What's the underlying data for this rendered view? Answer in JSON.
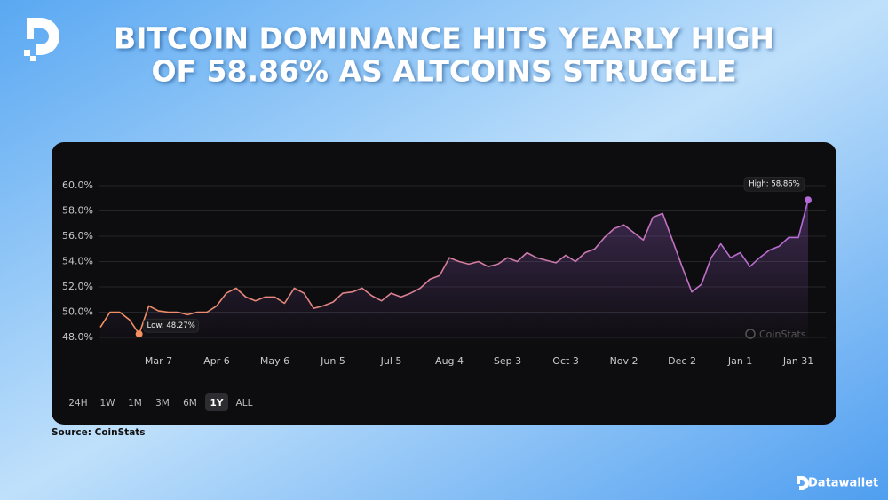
{
  "header": {
    "title_lines": [
      "BITCOIN DOMINANCE HITS YEARLY HIGH",
      "OF 58.86% AS ALTCOINS STRUGGLE"
    ]
  },
  "chart_data": {
    "type": "line",
    "categories": [
      null,
      null,
      null,
      null,
      null,
      null,
      "Mar 7",
      null,
      null,
      null,
      null,
      null,
      "Apr 6",
      null,
      null,
      null,
      null,
      null,
      "May 6",
      null,
      null,
      null,
      null,
      null,
      "Jun 5",
      null,
      null,
      null,
      null,
      null,
      "Jul 5",
      null,
      null,
      null,
      null,
      null,
      "Aug 4",
      null,
      null,
      null,
      null,
      null,
      "Sep 3",
      null,
      null,
      null,
      null,
      null,
      "Oct 3",
      null,
      null,
      null,
      null,
      null,
      "Nov 2",
      null,
      null,
      null,
      null,
      null,
      "Dec 2",
      null,
      null,
      null,
      null,
      null,
      "Jan 1",
      null,
      null,
      null,
      null,
      null,
      "Jan 31",
      null
    ],
    "values": [
      48.8,
      50.0,
      50.0,
      49.4,
      48.27,
      50.5,
      50.1,
      50.0,
      50.0,
      49.8,
      50.0,
      50.0,
      50.5,
      51.5,
      51.9,
      51.2,
      50.9,
      51.2,
      51.2,
      50.7,
      51.9,
      51.5,
      50.3,
      50.5,
      50.8,
      51.5,
      51.6,
      51.9,
      51.3,
      50.9,
      51.5,
      51.2,
      51.5,
      51.9,
      52.6,
      52.9,
      54.3,
      54.0,
      53.8,
      54.0,
      53.6,
      53.8,
      54.3,
      54.0,
      54.7,
      54.3,
      54.1,
      53.9,
      54.5,
      54.0,
      54.7,
      55.0,
      55.9,
      56.6,
      56.9,
      56.3,
      55.7,
      57.5,
      57.8,
      55.7,
      53.6,
      51.6,
      52.2,
      54.3,
      55.4,
      54.3,
      54.7,
      53.6,
      54.3,
      54.9,
      55.2,
      55.9,
      55.9,
      58.86
    ],
    "colors": [
      "#f4915e",
      "#b36ad8"
    ],
    "ylim": [
      48,
      60
    ],
    "yticks": [
      {
        "value": 48,
        "label": "48.0%"
      },
      {
        "value": 50,
        "label": "50.0%"
      },
      {
        "value": 52,
        "label": "52.0%"
      },
      {
        "value": 54,
        "label": "54.0%"
      },
      {
        "value": 56,
        "label": "56.0%"
      },
      {
        "value": 58,
        "label": "58.0%"
      },
      {
        "value": 60,
        "label": "60.0%"
      }
    ],
    "grid": true,
    "annotations": {
      "low": "Low: 48.27%",
      "high": "High: 58.86%"
    },
    "watermark": "CoinStats"
  },
  "range_buttons": [
    "24H",
    "1W",
    "1M",
    "3M",
    "6M",
    "1Y",
    "ALL"
  ],
  "active_range": "1Y",
  "source": "Source: CoinStats",
  "brand": "Datawallet"
}
